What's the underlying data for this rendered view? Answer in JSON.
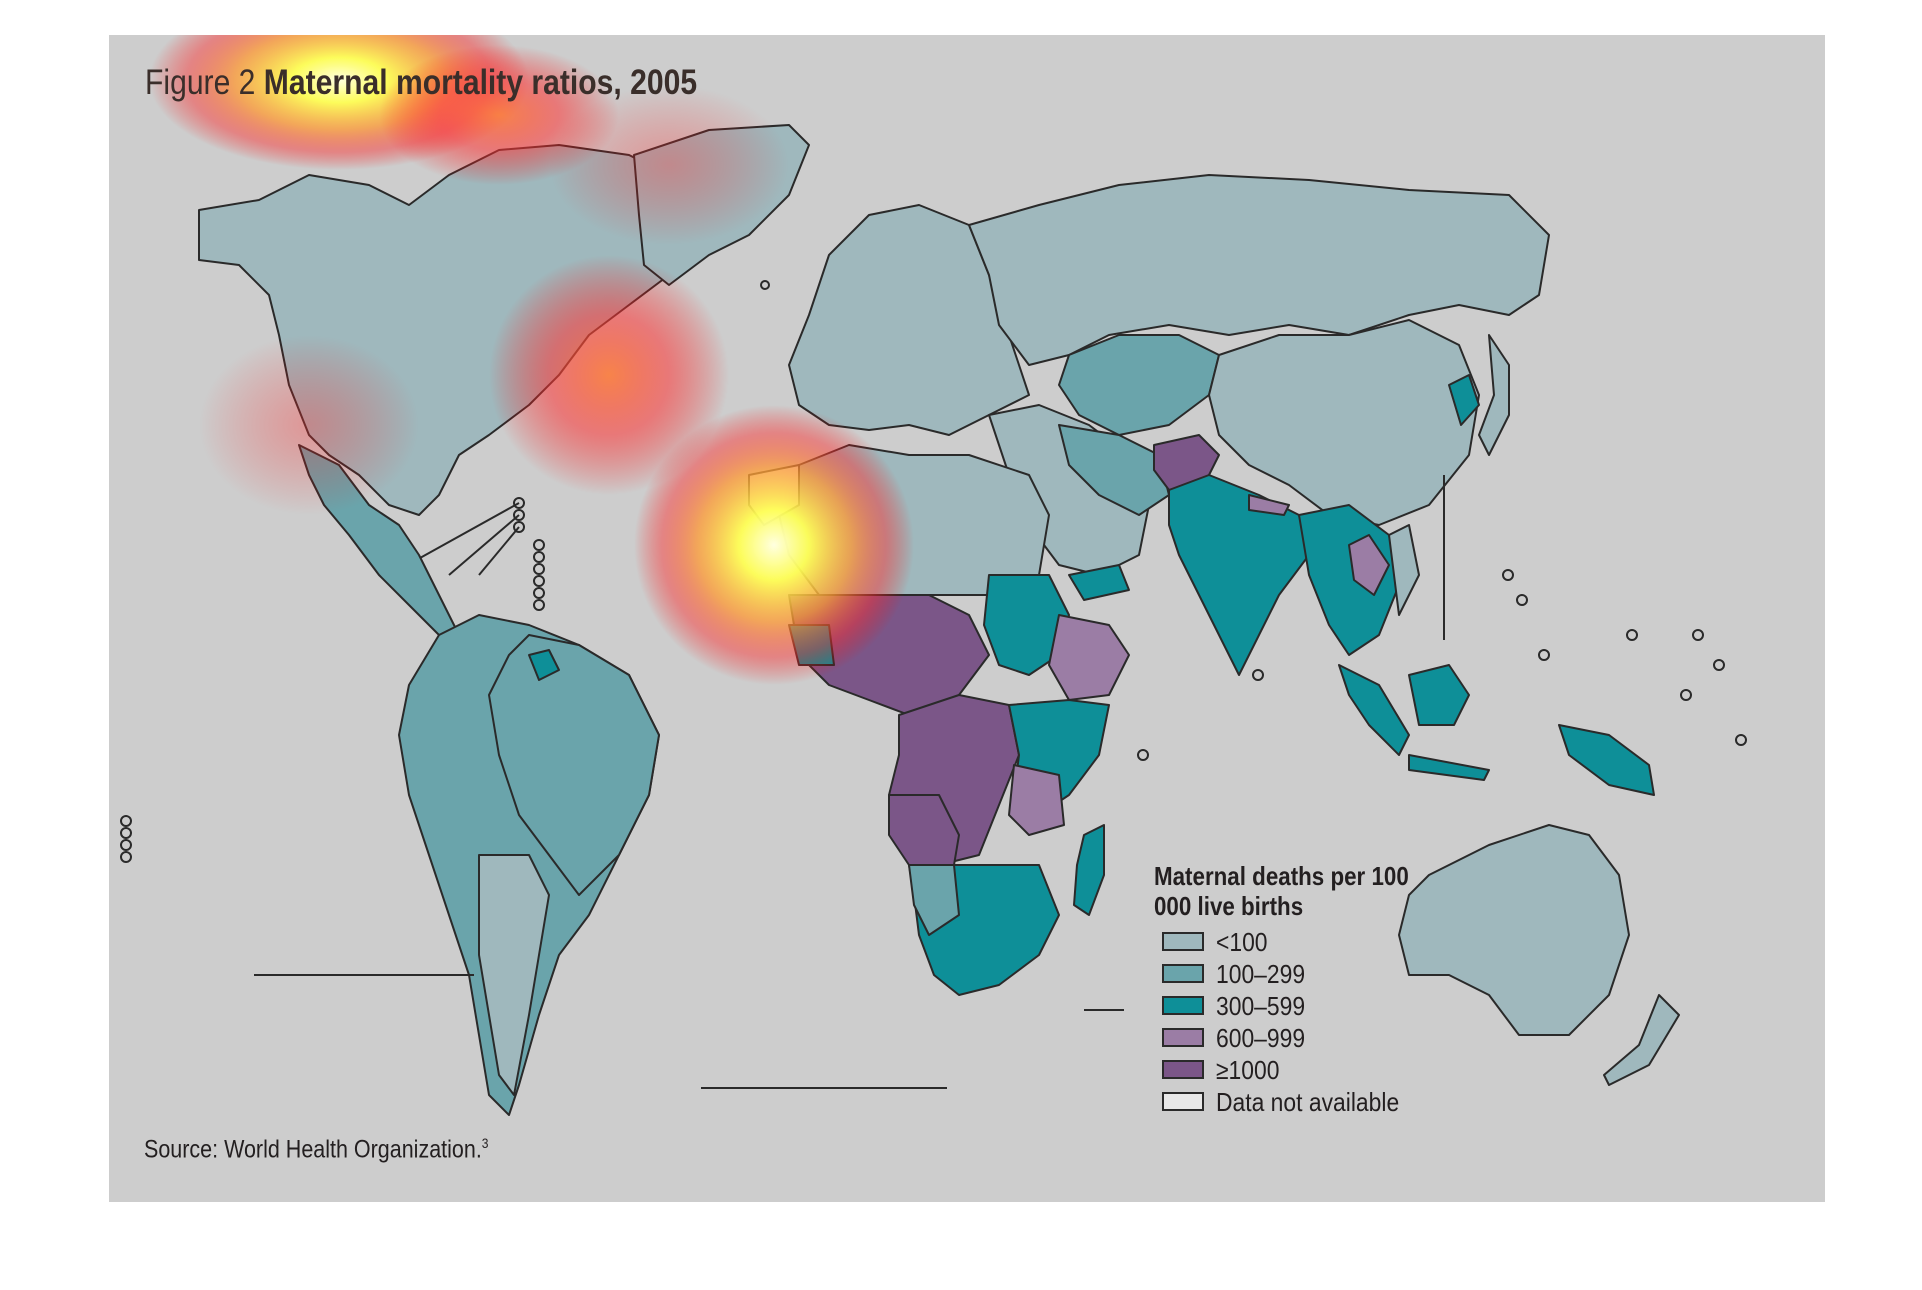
{
  "figure": {
    "title_prefix": "Figure 2",
    "title_main": "Maternal mortality ratios, 2005",
    "source": "Source: World Health Organization.",
    "source_ref": "3"
  },
  "legend": {
    "title": "Maternal deaths per 100 000 live births",
    "items": [
      {
        "label": "<100",
        "color": "#9fb8bd"
      },
      {
        "label": "100–299",
        "color": "#6aa4ab"
      },
      {
        "label": "300–599",
        "color": "#0e8f98"
      },
      {
        "label": "600–999",
        "color": "#9b7da5"
      },
      {
        "label": "≥1000",
        "color": "#7b5688"
      },
      {
        "label": "Data not available",
        "color": "#e8e8e8"
      }
    ]
  },
  "colors": {
    "background": "#cdcdcd",
    "border": "#2a2a2a",
    "heatmap_overlay": [
      "#ffff66",
      "#ffcc33",
      "#ff3333"
    ]
  }
}
